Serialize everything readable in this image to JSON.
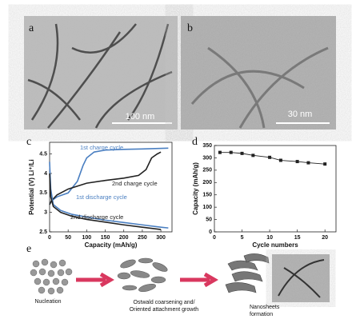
{
  "panels": {
    "a": "a",
    "b": "b",
    "c": "c",
    "d": "d",
    "e": "e"
  },
  "scale_bars": {
    "a": "100 nm",
    "b": "30 nm"
  },
  "chart_data": [
    {
      "type": "line",
      "ylabel": "Potential (V) Li⁺/Li",
      "xlabel": "Capacity (mAh/g)",
      "xlim": [
        0,
        330
      ],
      "xticks": [
        0,
        50,
        100,
        150,
        200,
        250,
        300
      ],
      "ylim": [
        2.5,
        4.8
      ],
      "yticks": [
        2.5,
        3.0,
        3.5,
        4.0,
        4.5
      ],
      "series": [
        {
          "color": "#4a7fc1",
          "x": [
            0,
            5,
            20,
            50,
            75,
            90,
            100,
            120,
            150,
            200,
            250,
            320
          ],
          "values": [
            3.2,
            3.3,
            3.4,
            3.5,
            3.8,
            4.2,
            4.4,
            4.55,
            4.6,
            4.62,
            4.63,
            4.65
          ]
        },
        {
          "color": "#222222",
          "x": [
            0,
            5,
            20,
            50,
            100,
            150,
            200,
            240,
            260,
            275,
            290,
            300
          ],
          "values": [
            3.2,
            3.3,
            3.45,
            3.6,
            3.75,
            3.82,
            3.88,
            3.95,
            4.1,
            4.4,
            4.5,
            4.55
          ]
        },
        {
          "color": "#4a7fc1",
          "x": [
            0,
            3,
            10,
            30,
            60,
            100,
            150,
            200,
            250,
            300,
            320
          ],
          "values": [
            4.3,
            3.6,
            3.2,
            3.05,
            2.95,
            2.88,
            2.8,
            2.74,
            2.68,
            2.62,
            2.6
          ]
        },
        {
          "color": "#222222",
          "x": [
            0,
            3,
            10,
            30,
            60,
            100,
            150,
            200,
            250,
            300
          ],
          "values": [
            4.0,
            3.4,
            3.15,
            3.0,
            2.9,
            2.82,
            2.75,
            2.68,
            2.62,
            2.56
          ]
        }
      ],
      "annotations": [
        "1st charge cycle",
        "2nd charge cycle",
        "1st discharge cycle",
        "2nd discharge cycle"
      ]
    },
    {
      "type": "line",
      "ylabel": "Capacity (mAh/g)",
      "xlabel": "Cycle numbers",
      "xlim": [
        0,
        22
      ],
      "xticks": [
        0,
        5,
        10,
        15,
        20
      ],
      "ylim": [
        0,
        350
      ],
      "yticks": [
        0,
        50,
        100,
        150,
        200,
        250,
        300,
        350
      ],
      "series": [
        {
          "color": "#222222",
          "x": [
            1,
            3,
            5,
            7,
            10,
            12,
            15,
            17,
            20
          ],
          "values": [
            322,
            322,
            318,
            310,
            302,
            290,
            285,
            280,
            275
          ]
        }
      ]
    }
  ],
  "diagram": {
    "steps": [
      "Nucleation",
      "Ostwald coarsening and/",
      "Oriented attachment growth",
      "Nanosheets",
      "formation"
    ]
  }
}
